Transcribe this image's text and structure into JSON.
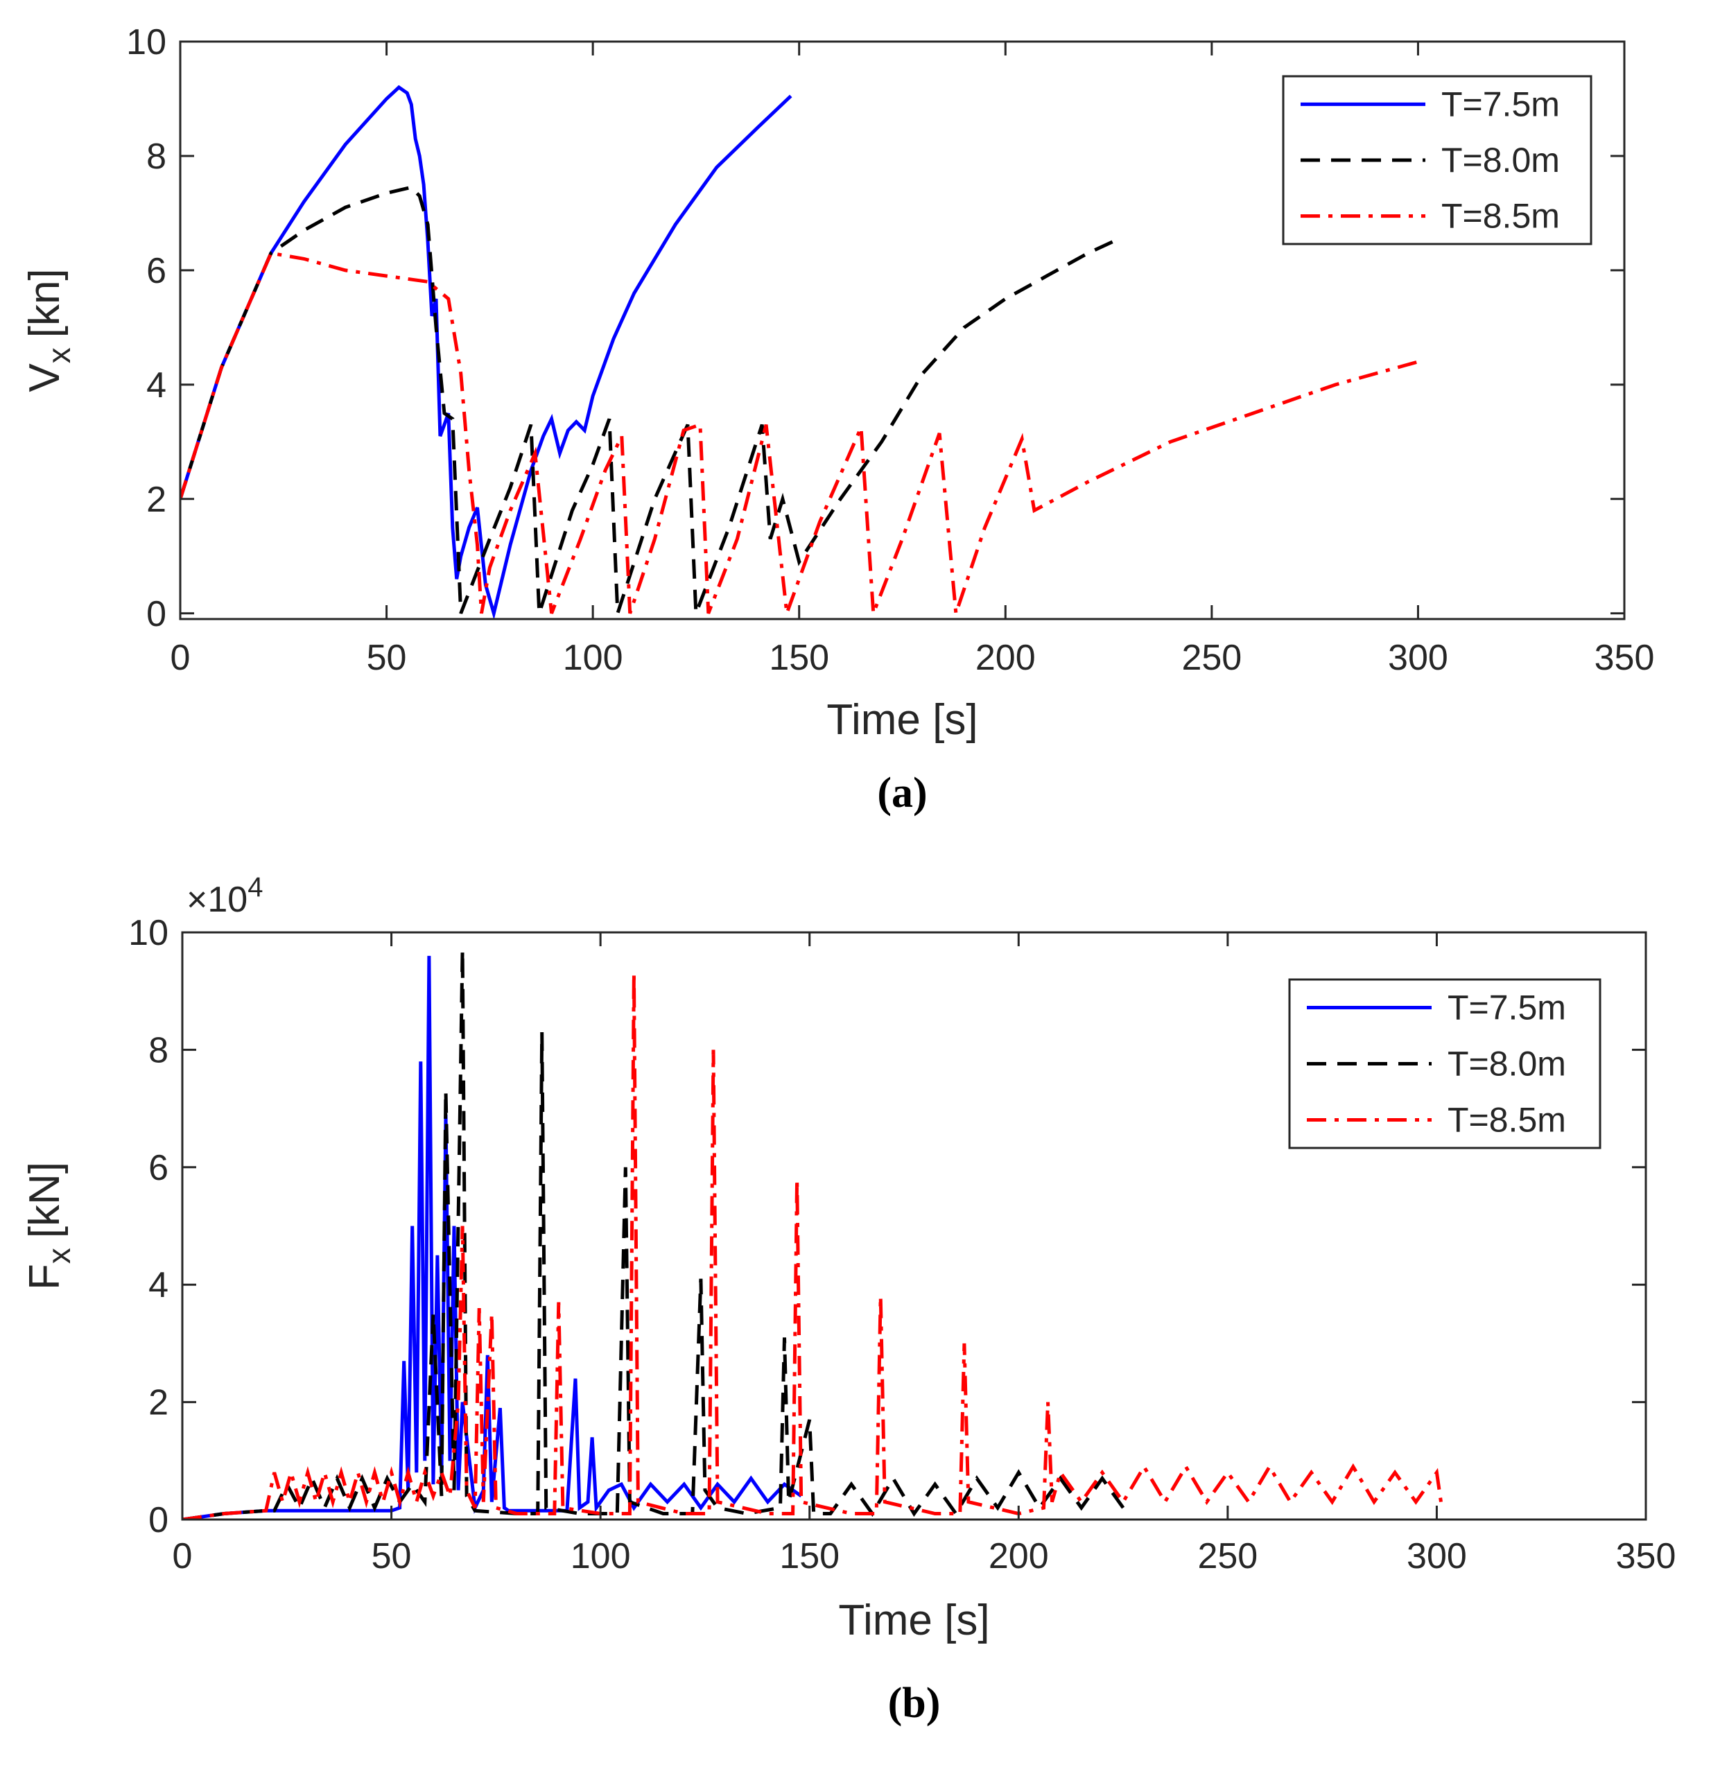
{
  "chart_data": [
    {
      "type": "line",
      "panel_label": "(a)",
      "xlabel": "Time [s]",
      "ylabel": {
        "main": "V",
        "sub": "x",
        "unit": "[kn]"
      },
      "xlim": [
        0,
        350
      ],
      "xticks": [
        0,
        50,
        100,
        150,
        200,
        250,
        300,
        350
      ],
      "ylim": [
        -0.1,
        10
      ],
      "yticks": [
        0,
        2,
        4,
        6,
        8,
        10
      ],
      "legend": "upper right",
      "series": [
        {
          "name": "T=7.5m",
          "color": "#0000ff",
          "dash": "solid",
          "x": [
            0,
            10,
            22,
            30,
            40,
            50,
            53,
            55,
            56,
            57,
            58,
            59,
            60,
            61,
            62,
            63,
            64,
            65,
            66,
            67,
            68,
            70,
            72,
            74,
            76,
            80,
            85,
            88,
            90,
            92,
            94,
            96,
            98,
            100,
            105,
            110,
            120,
            130,
            140,
            148
          ],
          "values": [
            2,
            4.3,
            6.3,
            7.2,
            8.2,
            9.0,
            9.2,
            9.1,
            8.9,
            8.3,
            8.0,
            7.5,
            6.5,
            5.2,
            5.5,
            3.1,
            3.3,
            3.5,
            1.5,
            0.6,
            1.0,
            1.5,
            1.85,
            0.5,
            0,
            1.2,
            2.5,
            3.1,
            3.4,
            2.8,
            3.2,
            3.35,
            3.2,
            3.8,
            4.8,
            5.6,
            6.8,
            7.8,
            8.5,
            9.05
          ]
        },
        {
          "name": "T=8.0m",
          "color": "#000000",
          "dash": "dashed",
          "x": [
            0,
            10,
            22,
            30,
            40,
            50,
            56,
            58,
            60,
            62,
            64,
            66,
            68,
            75,
            80,
            85,
            87,
            95,
            100,
            104,
            106,
            115,
            123,
            125,
            133,
            141,
            143,
            146,
            150,
            160,
            170,
            180,
            190,
            200,
            210,
            220,
            226
          ],
          "values": [
            2,
            4.3,
            6.3,
            6.7,
            7.1,
            7.35,
            7.45,
            7.3,
            6.8,
            5.0,
            3.5,
            3.4,
            0,
            1.3,
            2.2,
            3.3,
            0,
            1.8,
            2.6,
            3.4,
            0,
            2.0,
            3.3,
            0,
            1.5,
            3.3,
            1.3,
            2.0,
            0.9,
            2.0,
            3.0,
            4.2,
            5.0,
            5.5,
            5.9,
            6.3,
            6.5
          ]
        },
        {
          "name": "T=8.5m",
          "color": "#ff0000",
          "dash": "dashdot",
          "x": [
            0,
            10,
            22,
            30,
            40,
            50,
            60,
            65,
            68,
            70,
            72,
            73,
            75,
            80,
            86,
            90,
            97,
            103,
            107,
            109,
            115,
            122,
            126,
            128,
            135,
            142,
            147,
            155,
            165,
            168,
            175,
            184,
            188,
            195,
            204,
            207,
            220,
            240,
            260,
            280,
            300
          ],
          "values": [
            2,
            4.3,
            6.3,
            6.2,
            6.0,
            5.9,
            5.8,
            5.5,
            4.2,
            2.5,
            1.2,
            0,
            0.8,
            1.8,
            2.8,
            0,
            1.3,
            2.5,
            3.1,
            0,
            1.3,
            3.2,
            3.3,
            0,
            1.3,
            3.3,
            0,
            1.6,
            3.25,
            0,
            1.3,
            3.15,
            0,
            1.5,
            3.05,
            1.8,
            2.3,
            3.0,
            3.5,
            4.0,
            4.4
          ]
        }
      ]
    },
    {
      "type": "line",
      "panel_label": "(b)",
      "xlabel": "Time [s]",
      "ylabel": {
        "main": "F",
        "sub": "x",
        "unit": "[kN]"
      },
      "y_multiplier": {
        "base": "×10",
        "exp": "4"
      },
      "xlim": [
        0,
        350
      ],
      "xticks": [
        0,
        50,
        100,
        150,
        200,
        250,
        300,
        350
      ],
      "ylim": [
        0,
        10
      ],
      "yticks": [
        0,
        2,
        4,
        6,
        8,
        10
      ],
      "legend": "upper right",
      "series": [
        {
          "name": "T=7.5m",
          "color": "#0000ff",
          "dash": "solid",
          "x": [
            0,
            10,
            20,
            30,
            40,
            50,
            52,
            53,
            54,
            55,
            56,
            57,
            58,
            59,
            60,
            61,
            62,
            63,
            64,
            65,
            66,
            67,
            70,
            72,
            73,
            74,
            76,
            77,
            78,
            85,
            92,
            94,
            95,
            97,
            98,
            99,
            102,
            105,
            108,
            112,
            116,
            120,
            124,
            128,
            132,
            136,
            140,
            144,
            148
          ],
          "values": [
            0,
            0.1,
            0.15,
            0.15,
            0.15,
            0.15,
            0.2,
            2.7,
            0.5,
            5.0,
            0.8,
            7.8,
            1.0,
            9.6,
            0.6,
            4.5,
            0.8,
            6.9,
            1.0,
            5.0,
            0.5,
            2.0,
            0.2,
            0.5,
            2.8,
            0.3,
            1.9,
            0.2,
            0.15,
            0.15,
            0.15,
            2.4,
            0.2,
            0.3,
            1.4,
            0.2,
            0.5,
            0.6,
            0.2,
            0.6,
            0.3,
            0.6,
            0.2,
            0.6,
            0.3,
            0.7,
            0.3,
            0.6,
            0.4
          ]
        },
        {
          "name": "T=8.0m",
          "color": "#000000",
          "dash": "dashed",
          "x": [
            0,
            10,
            20,
            22,
            25,
            28,
            31,
            34,
            37,
            40,
            43,
            46,
            49,
            52,
            55,
            58,
            60,
            62,
            63,
            65,
            67,
            68,
            70,
            80,
            85,
            86,
            87,
            95,
            104,
            106,
            107,
            115,
            122,
            124,
            125,
            128,
            135,
            143,
            144,
            145,
            150,
            151,
            155,
            160,
            165,
            170,
            175,
            180,
            185,
            190,
            195,
            200,
            205,
            210,
            215,
            220,
            225
          ],
          "values": [
            0,
            0.1,
            0.15,
            0.15,
            0.6,
            0.2,
            0.7,
            0.2,
            0.7,
            0.2,
            0.7,
            0.2,
            0.7,
            0.3,
            0.6,
            0.3,
            3.5,
            0.4,
            7.3,
            0.5,
            9.7,
            0.4,
            0.15,
            0.1,
            0.1,
            8.3,
            0.2,
            0.1,
            0.1,
            6.0,
            0.3,
            0.1,
            0.1,
            4.1,
            0.5,
            0.2,
            0.1,
            0.2,
            3.1,
            0.3,
            1.7,
            0.1,
            0.1,
            0.6,
            0.1,
            0.7,
            0.1,
            0.6,
            0.1,
            0.7,
            0.2,
            0.8,
            0.2,
            0.7,
            0.2,
            0.7,
            0.2
          ]
        },
        {
          "name": "T=8.5m",
          "color": "#ff0000",
          "dash": "dashdot",
          "x": [
            0,
            10,
            20,
            22,
            24,
            26,
            28,
            30,
            32,
            34,
            36,
            38,
            40,
            42,
            44,
            46,
            48,
            50,
            52,
            54,
            56,
            58,
            60,
            62,
            64,
            66,
            67,
            68,
            70,
            71,
            72,
            74,
            75,
            80,
            89,
            90,
            91,
            100,
            107,
            108,
            109,
            120,
            126,
            127,
            128,
            140,
            146,
            147,
            148,
            160,
            166,
            167,
            168,
            180,
            186,
            187,
            188,
            200,
            206,
            207,
            208,
            210,
            215,
            220,
            225,
            230,
            235,
            240,
            245,
            250,
            255,
            260,
            265,
            270,
            275,
            280,
            285,
            290,
            295,
            300,
            301
          ],
          "values": [
            0,
            0.1,
            0.15,
            0.8,
            0.3,
            0.8,
            0.3,
            0.8,
            0.3,
            0.8,
            0.3,
            0.8,
            0.3,
            0.8,
            0.3,
            0.8,
            0.3,
            0.8,
            0.3,
            0.8,
            0.3,
            0.8,
            0.4,
            0.8,
            0.4,
            2.0,
            5.0,
            0.5,
            0.2,
            3.6,
            0.3,
            3.5,
            0.2,
            0.1,
            0.1,
            3.7,
            0.2,
            0.1,
            0.1,
            9.3,
            0.3,
            0.1,
            0.1,
            8.0,
            0.3,
            0.1,
            0.1,
            5.8,
            0.3,
            0.1,
            0.1,
            3.8,
            0.3,
            0.1,
            0.1,
            3.0,
            0.3,
            0.1,
            0.2,
            2.0,
            0.3,
            0.8,
            0.3,
            0.8,
            0.3,
            0.9,
            0.3,
            0.9,
            0.3,
            0.8,
            0.3,
            0.9,
            0.3,
            0.8,
            0.3,
            0.9,
            0.3,
            0.8,
            0.3,
            0.8,
            0.3
          ]
        }
      ]
    }
  ]
}
